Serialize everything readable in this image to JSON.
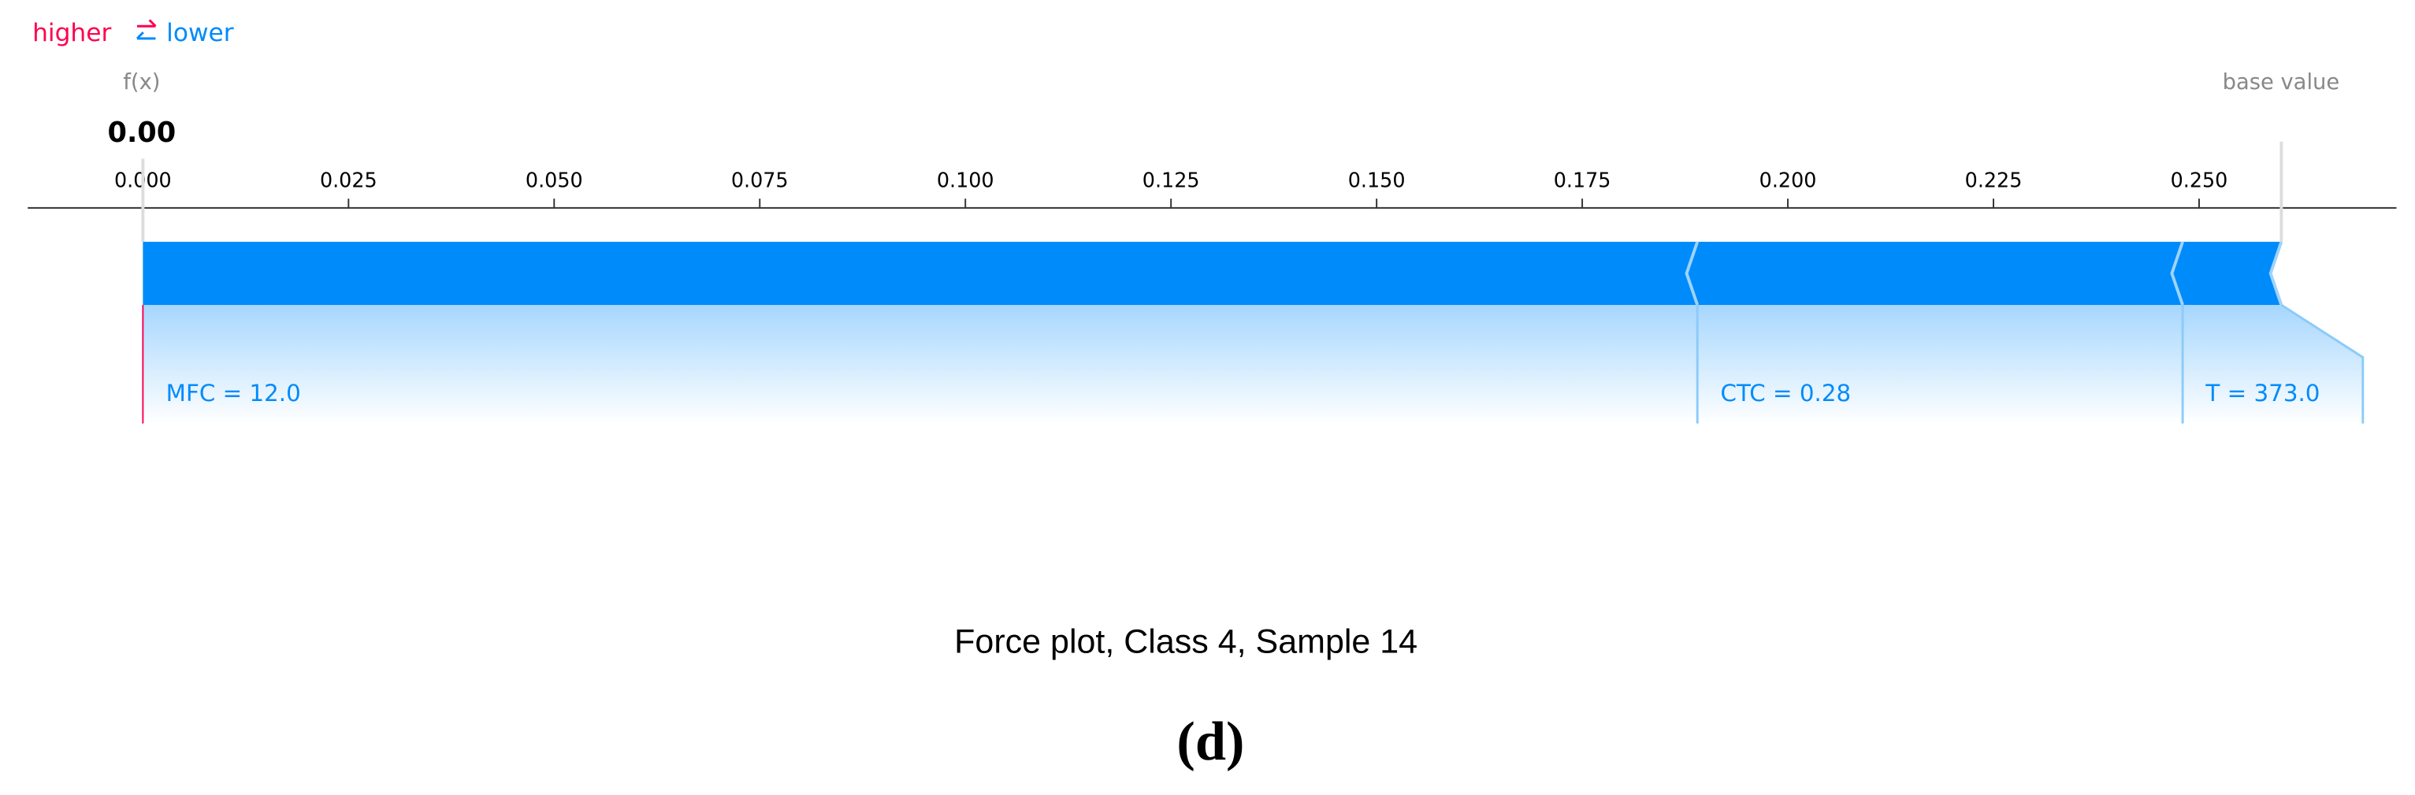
{
  "chart_data": {
    "type": "force",
    "legend_higher": "higher",
    "legend_lower": "lower",
    "output_label": "f(x)",
    "output_value": 0,
    "output_value_label": "0.00",
    "base_label": "base value",
    "base_value": 0.26,
    "xlim": [
      -0.014,
      0.274
    ],
    "xticks": [
      {
        "value": 0,
        "label": "0.000"
      },
      {
        "value": 0.025,
        "label": "0.025"
      },
      {
        "value": 0.05,
        "label": "0.050"
      },
      {
        "value": 0.075,
        "label": "0.075"
      },
      {
        "value": 0.1,
        "label": "0.100"
      },
      {
        "value": 0.125,
        "label": "0.125"
      },
      {
        "value": 0.15,
        "label": "0.150"
      },
      {
        "value": 0.175,
        "label": "0.175"
      },
      {
        "value": 0.2,
        "label": "0.200"
      },
      {
        "value": 0.225,
        "label": "0.225"
      },
      {
        "value": 0.25,
        "label": "0.250"
      }
    ],
    "features": [
      {
        "label": "MFC = 12.0",
        "value": 0.189
      },
      {
        "label": "CTC = 0.28",
        "value": 0.059
      },
      {
        "label": "T = 373.0",
        "value": 0.012
      }
    ],
    "color_higher": "#ff0051",
    "color_lower": "#008bfb",
    "caption": "Force plot, Class 4, Sample 14",
    "panel": "(d)"
  }
}
